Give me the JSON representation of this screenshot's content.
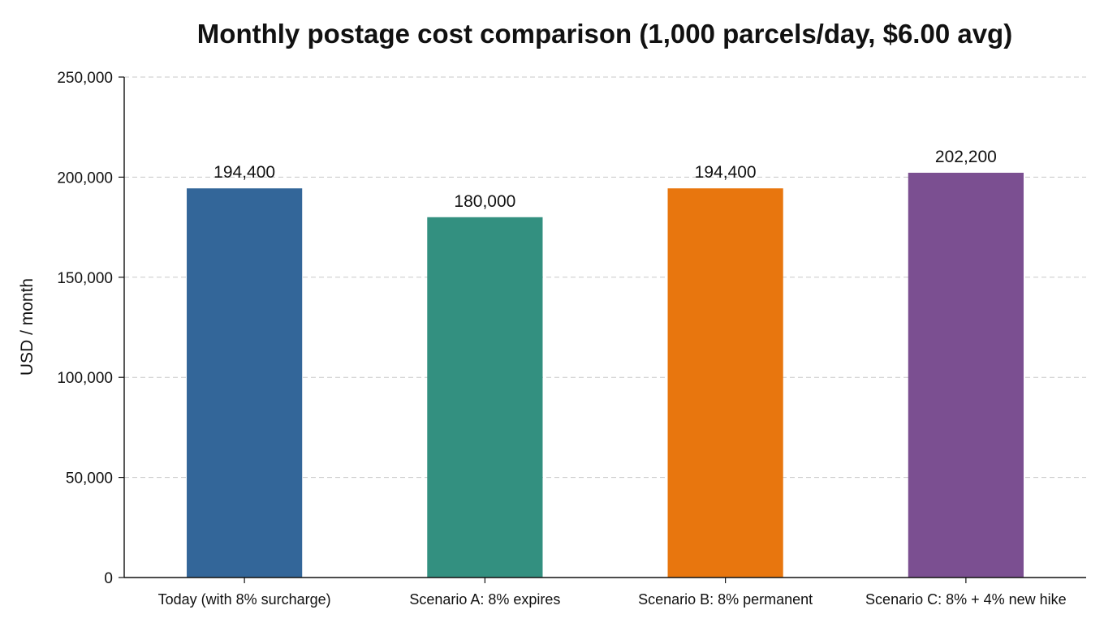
{
  "chart_data": {
    "type": "bar",
    "title": "Monthly postage cost comparison (1,000 parcels/day, $6.00 avg)",
    "xlabel": "",
    "ylabel": "USD / month",
    "ylim": [
      0,
      250000
    ],
    "yticks": [
      0,
      50000,
      100000,
      150000,
      200000,
      250000
    ],
    "ytick_labels": [
      "0",
      "50,000",
      "100,000",
      "150,000",
      "200,000",
      "250,000"
    ],
    "grid": true,
    "legend": "none",
    "categories": [
      "Today (with 8% surcharge)",
      "Scenario A: 8% expires",
      "Scenario B: 8% permanent",
      "Scenario C: 8% + 4% new hike"
    ],
    "values": [
      194400,
      180000,
      194400,
      202200
    ],
    "value_labels": [
      "194,400",
      "180,000",
      "194,400",
      "202,200"
    ],
    "colors": [
      "#336699",
      "#339080",
      "#E8760E",
      "#7B4F91"
    ]
  }
}
